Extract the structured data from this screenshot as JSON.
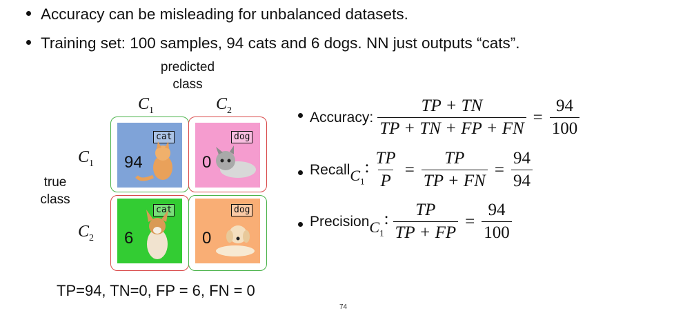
{
  "bullets": [
    "Accuracy can be misleading for unbalanced datasets.",
    "Training set: 100 samples, 94 cats and 6 dogs. NN just outputs “cats”."
  ],
  "axis": {
    "predicted_line1": "predicted",
    "predicted_line2": "class",
    "true_line1": "true",
    "true_line2": "class",
    "col1": "C",
    "col1_sub": "1",
    "col2": "C",
    "col2_sub": "2",
    "row1": "C",
    "row1_sub": "1",
    "row2": "C",
    "row2_sub": "2"
  },
  "matrix": {
    "cells": [
      {
        "value": "94",
        "tag": "cat",
        "color": "#7fa3d8"
      },
      {
        "value": "0",
        "tag": "dog",
        "color": "#f59ccf"
      },
      {
        "value": "6",
        "tag": "cat",
        "color": "#33cc33"
      },
      {
        "value": "0",
        "tag": "dog",
        "color": "#f9ae75"
      }
    ],
    "green_frame": "#4ab34a",
    "red_frame": "#d94a4a"
  },
  "summary": "TP=94, TN=0, FP = 6, FN = 0",
  "formulas": {
    "accuracy_label": "Accuracy:",
    "accuracy_num": "TP + TN",
    "accuracy_den": "TP + TN + FP + FN",
    "accuracy_res_num": "94",
    "accuracy_res_den": "100",
    "recall_label": "Recall",
    "recall_sub_c": "C",
    "recall_sub_1": "1",
    "recall_colon": ":",
    "recall_f1_num": "TP",
    "recall_f1_den": "P",
    "recall_f2_num": "TP",
    "recall_f2_den": "TP + FN",
    "recall_res_num": "94",
    "recall_res_den": "94",
    "precision_label": "Precision",
    "precision_sub_c": "C",
    "precision_sub_1": "1",
    "precision_colon": ":",
    "precision_num": "TP",
    "precision_den": "TP + FP",
    "precision_res_num": "94",
    "precision_res_den": "100",
    "equals": "="
  },
  "page_number": "74"
}
